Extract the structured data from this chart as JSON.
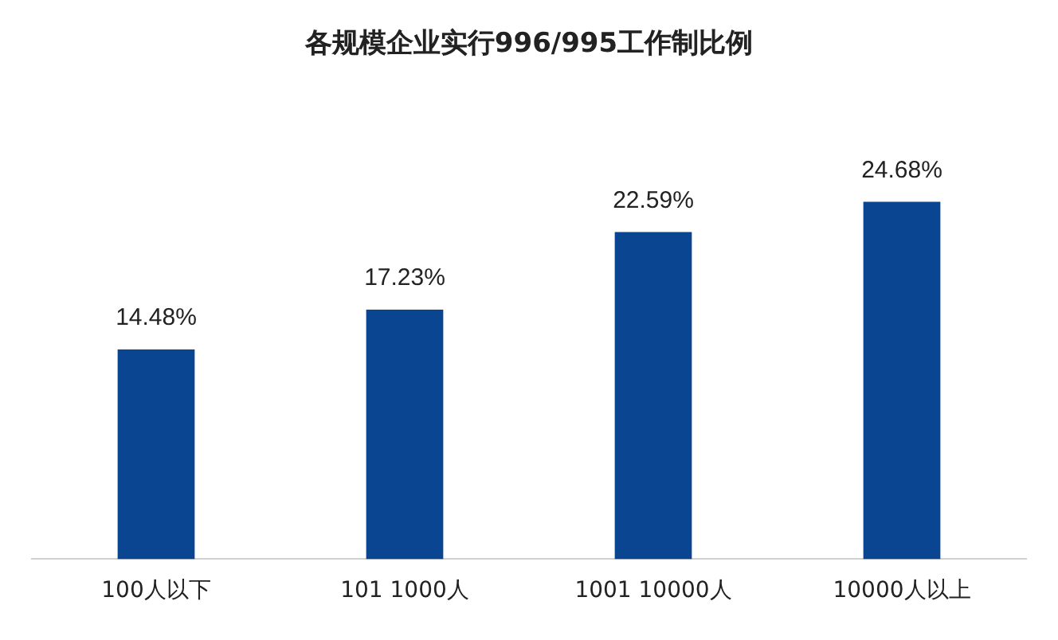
{
  "chart_data": {
    "type": "bar",
    "title": "各规模企业实行996/995工作制比例",
    "categories": [
      "100人以下",
      "101 1000人",
      "1001 10000人",
      "10000人以上"
    ],
    "values": [
      14.48,
      17.23,
      22.59,
      24.68
    ],
    "color": "#0a4592",
    "value_labels": [
      "14.48%",
      "17.23%",
      "22.59%",
      "24.68%"
    ],
    "grid": false,
    "legend": false
  }
}
